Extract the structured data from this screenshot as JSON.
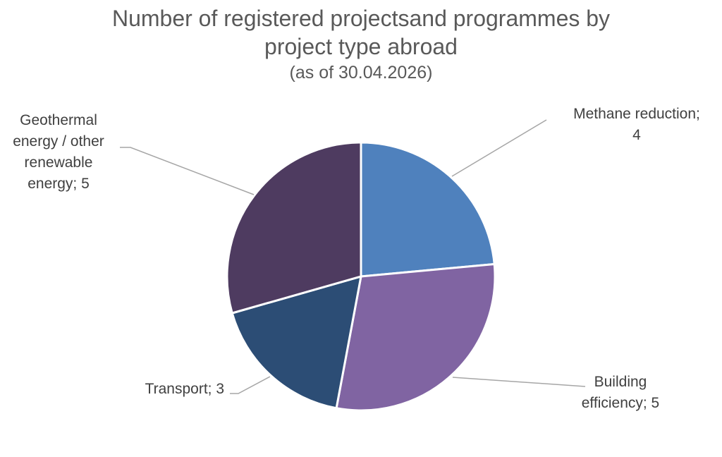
{
  "chart_data": {
    "type": "pie",
    "title_lines": [
      "Number of registered projectsand programmes by",
      "project type abroad"
    ],
    "subtitle": "(as of 30.04.2026)",
    "slices": [
      {
        "label": "Methane reduction",
        "value": 4,
        "color": "#4F81BD",
        "display_lines": [
          "Methane reduction;",
          "4"
        ]
      },
      {
        "label": "Building efficiency",
        "value": 5,
        "color": "#8064A2",
        "display_lines": [
          "Building",
          "efficiency; 5"
        ]
      },
      {
        "label": "Transport",
        "value": 3,
        "color": "#2C4D75",
        "display_lines": [
          "Transport; 3"
        ]
      },
      {
        "label": "Geothermal energy / other renewable energy",
        "value": 5,
        "color": "#4E3B60",
        "display_lines": [
          "Geothermal",
          "energy / other",
          "renewable",
          "energy; 5"
        ]
      }
    ],
    "legend": "none",
    "data_labels": "outside with leader lines"
  }
}
